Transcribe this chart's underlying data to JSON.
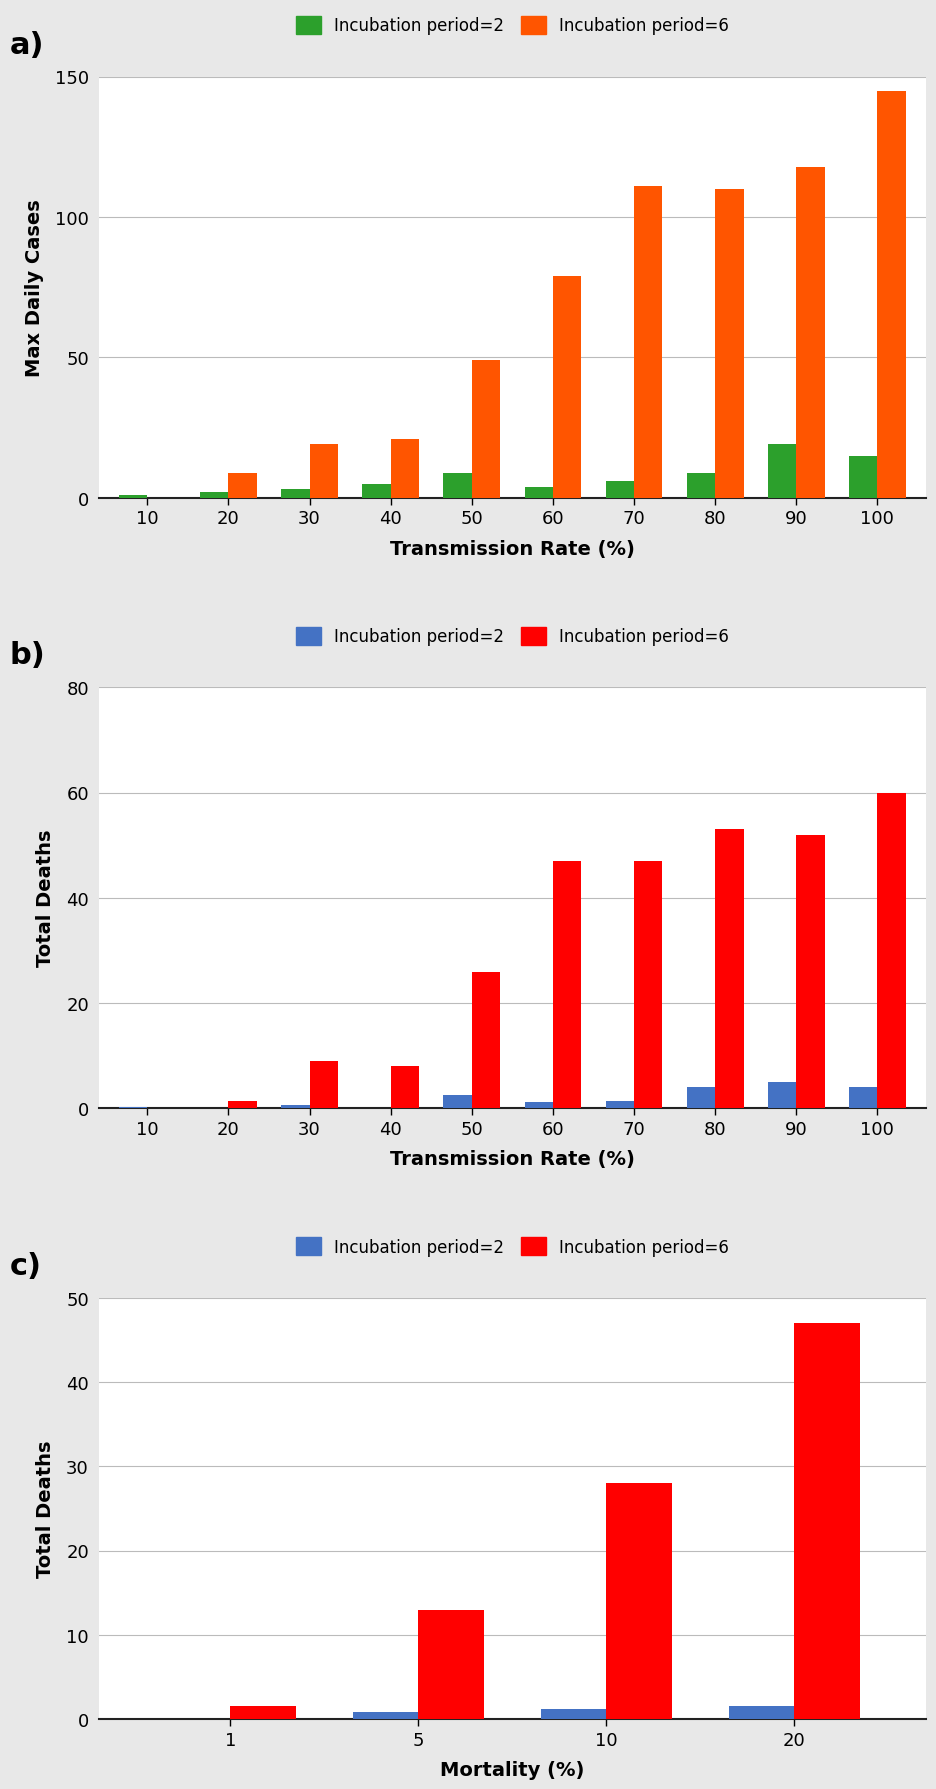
{
  "panel_a": {
    "title_label": "a)",
    "xlabel": "Transmission Rate (%)",
    "ylabel": "Max Daily Cases",
    "ylim": [
      0,
      150
    ],
    "yticks": [
      0,
      50,
      100,
      150
    ],
    "categories": [
      10,
      20,
      30,
      40,
      50,
      60,
      70,
      80,
      90,
      100
    ],
    "incub2_values": [
      1,
      2,
      3,
      5,
      9,
      4,
      6,
      9,
      19,
      15
    ],
    "incub6_values": [
      0,
      9,
      19,
      21,
      49,
      79,
      111,
      110,
      118,
      145
    ],
    "color2": "#2ca02c",
    "color6": "#ff5500",
    "legend_label2": "Incubation period=2",
    "legend_label6": "Incubation period=6"
  },
  "panel_b": {
    "title_label": "b)",
    "xlabel": "Transmission Rate (%)",
    "ylabel": "Total Deaths",
    "ylim": [
      0,
      80
    ],
    "yticks": [
      0,
      20,
      40,
      60,
      80
    ],
    "categories": [
      10,
      20,
      30,
      40,
      50,
      60,
      70,
      80,
      90,
      100
    ],
    "incub2_values": [
      0.3,
      0,
      0.7,
      0,
      2.5,
      1.2,
      1.5,
      4,
      5,
      4
    ],
    "incub6_values": [
      0,
      1.5,
      9,
      8,
      26,
      47,
      47,
      53,
      52,
      60
    ],
    "color2": "#4472c4",
    "color6": "#ff0000",
    "legend_label2": "Incubation period=2",
    "legend_label6": "Incubation period=6"
  },
  "panel_c": {
    "title_label": "c)",
    "xlabel": "Mortality (%)",
    "ylabel": "Total Deaths",
    "ylim": [
      0,
      50
    ],
    "yticks": [
      0,
      10,
      20,
      30,
      40,
      50
    ],
    "categories": [
      1,
      5,
      10,
      20
    ],
    "incub2_values": [
      0,
      0.9,
      1.2,
      1.5
    ],
    "incub6_values": [
      1.5,
      13,
      28,
      47
    ],
    "color2": "#4472c4",
    "color6": "#ff0000",
    "legend_label2": "Incubation period=2",
    "legend_label6": "Incubation period=6"
  },
  "bg_color": "#e8e8e8",
  "plot_bg_color": "#ffffff",
  "grid_color": "#bbbbbb",
  "bar_width": 0.35
}
